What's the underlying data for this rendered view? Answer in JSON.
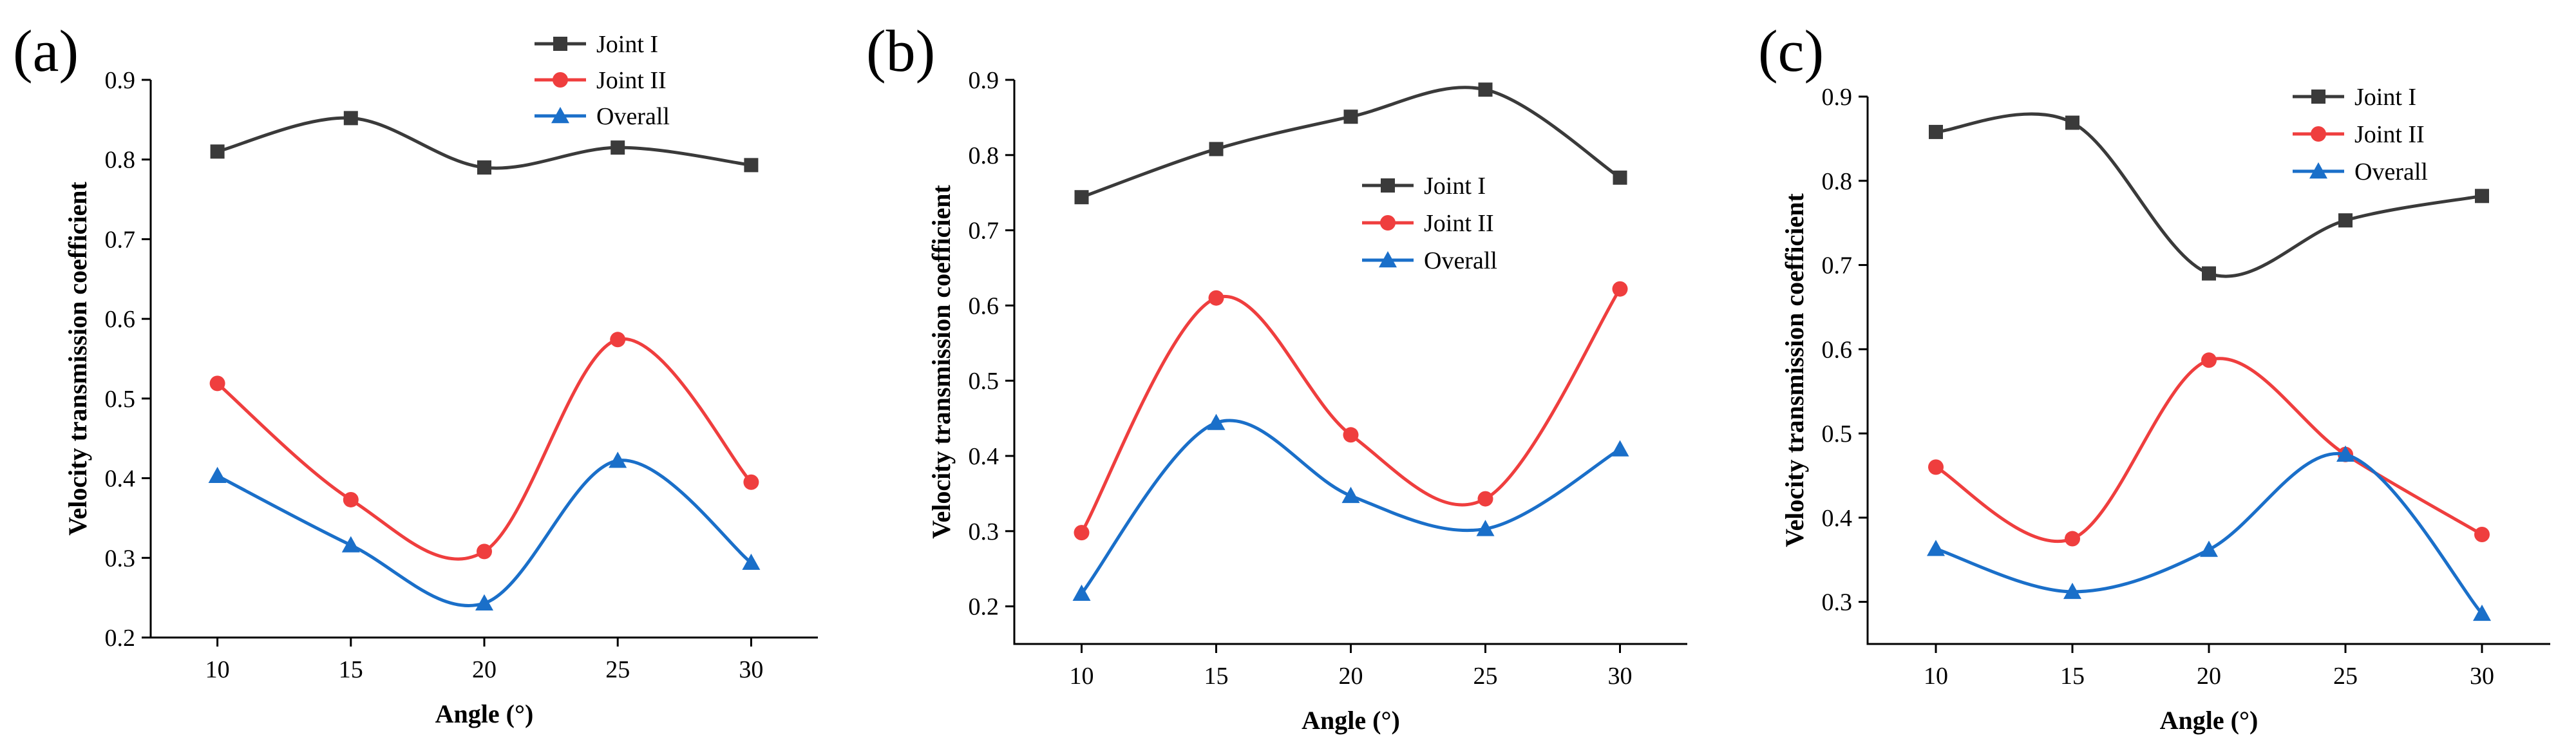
{
  "colors": {
    "joint1": "#3a3a3a",
    "joint2": "#ef3e3e",
    "overall": "#1a6fc9"
  },
  "chart_data": [
    {
      "type": "line",
      "panel_label": "(a)",
      "xlabel": "Angle (°)",
      "ylabel": "Velocity transmission coefficient",
      "xlim": [
        7.5,
        32.5
      ],
      "ylim": [
        0.2,
        0.9
      ],
      "x_ticks": [
        10,
        15,
        20,
        25,
        30
      ],
      "y_ticks": [
        0.2,
        0.3,
        0.4,
        0.5,
        0.6,
        0.7,
        0.8,
        0.9
      ],
      "x": [
        10,
        15,
        20,
        25,
        30
      ],
      "legend_position": "top-center",
      "series": [
        {
          "name": "Joint I",
          "marker": "square",
          "values": [
            0.81,
            0.852,
            0.79,
            0.815,
            0.793
          ]
        },
        {
          "name": "Joint II",
          "marker": "circle",
          "values": [
            0.519,
            0.373,
            0.308,
            0.574,
            0.395
          ]
        },
        {
          "name": "Overall",
          "marker": "triangle",
          "values": [
            0.403,
            0.316,
            0.243,
            0.422,
            0.294
          ]
        }
      ]
    },
    {
      "type": "line",
      "panel_label": "(b)",
      "xlabel": "Angle (°)",
      "ylabel": "Velocity transmission coefficient",
      "xlim": [
        7.5,
        32.5
      ],
      "ylim": [
        0.15,
        0.9
      ],
      "x_ticks": [
        10,
        15,
        20,
        25,
        30
      ],
      "y_ticks": [
        0.2,
        0.3,
        0.4,
        0.5,
        0.6,
        0.7,
        0.8,
        0.9
      ],
      "x": [
        10,
        15,
        20,
        25,
        30
      ],
      "legend_position": "upper-right",
      "series": [
        {
          "name": "Joint I",
          "marker": "square",
          "values": [
            0.744,
            0.808,
            0.851,
            0.887,
            0.77
          ]
        },
        {
          "name": "Joint II",
          "marker": "circle",
          "values": [
            0.298,
            0.61,
            0.428,
            0.343,
            0.622
          ]
        },
        {
          "name": "Overall",
          "marker": "triangle",
          "values": [
            0.217,
            0.444,
            0.347,
            0.303,
            0.409
          ]
        }
      ]
    },
    {
      "type": "line",
      "panel_label": "(c)",
      "xlabel": "Angle (°)",
      "ylabel": "Velocity transmission coefficient",
      "xlim": [
        7.5,
        32.5
      ],
      "ylim": [
        0.25,
        0.9
      ],
      "x_ticks": [
        10,
        15,
        20,
        25,
        30
      ],
      "y_ticks": [
        0.3,
        0.4,
        0.5,
        0.6,
        0.7,
        0.8,
        0.9
      ],
      "x": [
        10,
        15,
        20,
        25,
        30
      ],
      "legend_position": "top-right",
      "series": [
        {
          "name": "Joint I",
          "marker": "square",
          "values": [
            0.858,
            0.869,
            0.69,
            0.753,
            0.782
          ]
        },
        {
          "name": "Joint II",
          "marker": "circle",
          "values": [
            0.46,
            0.375,
            0.587,
            0.475,
            0.38
          ]
        },
        {
          "name": "Overall",
          "marker": "triangle",
          "values": [
            0.363,
            0.312,
            0.362,
            0.475,
            0.286
          ]
        }
      ]
    }
  ]
}
